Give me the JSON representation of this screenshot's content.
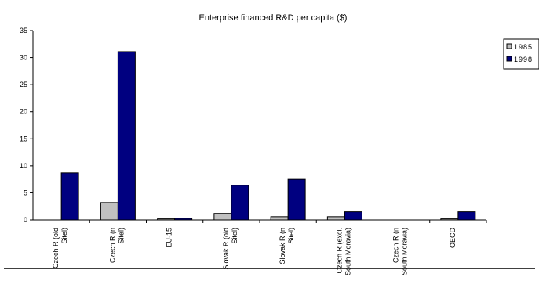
{
  "chart_data": {
    "type": "bar",
    "title": "Enterprise financed R&D per capita ($)",
    "xlabel": "",
    "ylabel": "",
    "ylim": [
      0,
      35
    ],
    "yticks": [
      "0",
      "5",
      "10",
      "15",
      "20",
      "25",
      "30",
      "35"
    ],
    "grid": false,
    "legend_position": "top-right",
    "categories": [
      "Czech R (old\nSitel)",
      "Czech R (n\nSitel)",
      "EU-15",
      "Slovak R (old\nSitel)",
      "Slovak R (n\nSitel)",
      "Czech R (excl.\nSouth Moravia)",
      "Czech R (n\nSouth Moravia)",
      "OECD"
    ],
    "series": [
      {
        "name": "1985",
        "color": "#c0c0c0",
        "values": [
          0,
          3.2,
          0.2,
          1.2,
          0.6,
          0.6,
          0,
          0.2
        ]
      },
      {
        "name": "1998",
        "color": "#000080",
        "values": [
          8.7,
          31.1,
          0.3,
          6.4,
          7.5,
          1.5,
          0,
          1.5
        ]
      }
    ]
  }
}
